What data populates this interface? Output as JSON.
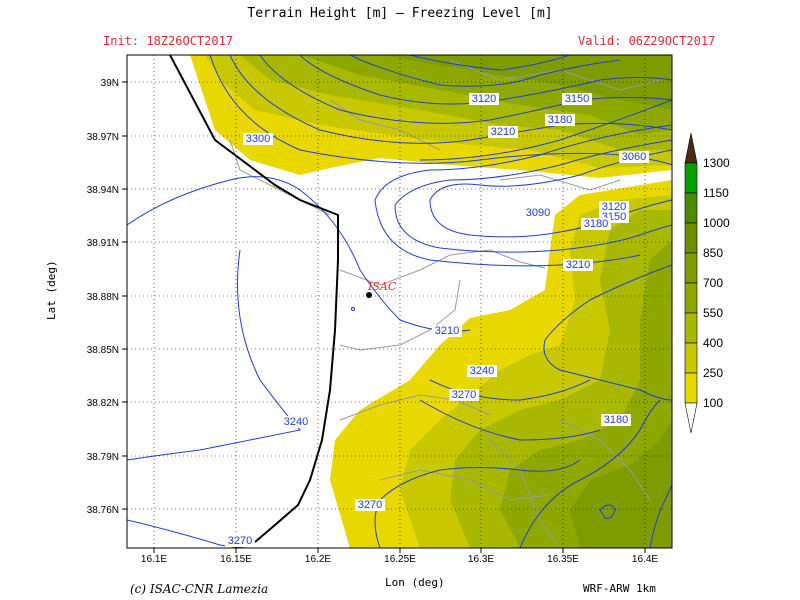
{
  "title": "Terrain Height [m] — Freezing Level [m]",
  "init": "Init: 18Z26OCT2017",
  "valid": "Valid: 06Z29OCT2017",
  "footer_left": "(c) ISAC-CNR Lamezia",
  "footer_right": "WRF-ARW 1km",
  "colors": {
    "info": "#e8282c",
    "contour": "#1f3fd6",
    "coast": "#000000",
    "roads": "#9a9a9a",
    "terrain": [
      "#ffffff",
      "#e8d800",
      "#c8c800",
      "#a8b800",
      "#8fa800",
      "#7e9c00",
      "#6a9000",
      "#4a8a00",
      "#00a000",
      "#4a2a10"
    ]
  },
  "chart_data": {
    "type": "map",
    "xlabel": "Lon (deg)",
    "ylabel": "Lat (deg)",
    "x_ticks": [
      "16.1E",
      "16.15E",
      "16.2E",
      "16.25E",
      "16.3E",
      "16.35E",
      "16.4E"
    ],
    "y_ticks": [
      "39N",
      "38.97N",
      "38.94N",
      "38.91N",
      "38.88N",
      "38.85N",
      "38.82N",
      "38.79N",
      "38.76N"
    ],
    "colorbar_levels": [
      "100",
      "250",
      "400",
      "550",
      "700",
      "850",
      "1000",
      "1150",
      "1300"
    ],
    "contour_labels": [
      "3300",
      "3120",
      "3150",
      "3180",
      "3210",
      "3060",
      "3090",
      "3120",
      "3150",
      "3180",
      "3210",
      "3210",
      "3240",
      "3270",
      "3240",
      "3180",
      "3270",
      "3270"
    ],
    "place_label": "ISAC",
    "grid": true
  }
}
